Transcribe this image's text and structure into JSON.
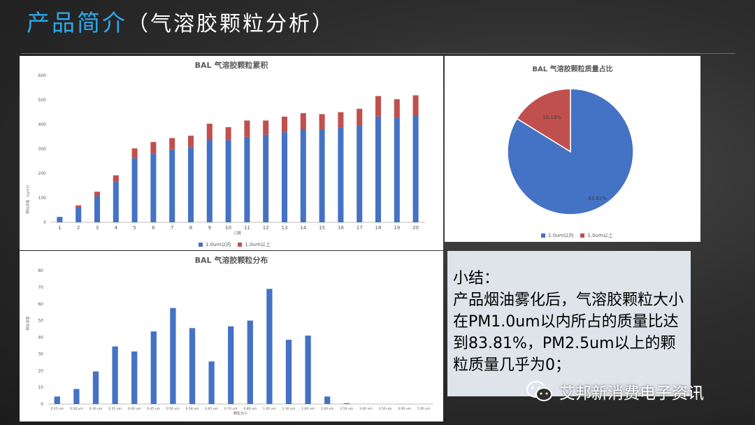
{
  "slide": {
    "title_main": "产品简介",
    "title_sub": "（气溶胶颗粒分析）"
  },
  "chart_data": [
    {
      "type": "bar",
      "stacked": true,
      "title": "BAL 气溶胶颗粒累积",
      "xlabel": "口数",
      "ylabel": "颗粒质量（ug/ml）",
      "ylim": [
        0,
        600
      ],
      "yticks": [
        0,
        100,
        200,
        300,
        400,
        500,
        600
      ],
      "categories": [
        "1",
        "2",
        "3",
        "4",
        "5",
        "6",
        "7",
        "8",
        "9",
        "10",
        "11",
        "12",
        "13",
        "14",
        "15",
        "16",
        "17",
        "18",
        "19",
        "20"
      ],
      "series": [
        {
          "name": "1.0um以内",
          "color": "#4472c4",
          "values": [
            22,
            60,
            107,
            165,
            262,
            282,
            298,
            308,
            340,
            336,
            349,
            358,
            368,
            380,
            380,
            386,
            394,
            432,
            427,
            437
          ]
        },
        {
          "name": "1.0um以上",
          "color": "#c0504d",
          "values": [
            0,
            9,
            18,
            27,
            40,
            46,
            46,
            46,
            63,
            53,
            67,
            58,
            64,
            66,
            62,
            64,
            70,
            84,
            76,
            82
          ]
        }
      ],
      "legend": "bottom",
      "grid": false
    },
    {
      "type": "bar",
      "title": "BAL 气溶胶颗粒分布",
      "xlabel": "颗粒大小",
      "ylabel": "颗粒质量",
      "ylim": [
        0,
        80
      ],
      "yticks": [
        0,
        10,
        20,
        30,
        40,
        50,
        60,
        70,
        80
      ],
      "categories": [
        "0.25 um",
        "0.28 um",
        "0.30 um",
        "0.35 um",
        "0.40 um",
        "0.45 um",
        "0.50 um",
        "0.58 um",
        "0.65 um",
        "0.70 um",
        "0.80 um",
        "1.00 um",
        "1.30 um",
        "1.60 um",
        "2.00 um",
        "2.50 um",
        "3.00 um",
        "3.50 um",
        "4.00 um",
        "5.00 um"
      ],
      "series": [
        {
          "name": "",
          "color": "#4472c4",
          "values": [
            4.5,
            9,
            19.5,
            34.5,
            31.5,
            43.5,
            57.5,
            45.5,
            25.5,
            46.5,
            50,
            69,
            38.5,
            41,
            4.5,
            0.5,
            0,
            0,
            0,
            0
          ]
        }
      ],
      "grid": false
    },
    {
      "type": "pie",
      "title": "BAL 气溶胶颗粒质量占比",
      "slices": [
        {
          "name": "1.0um以内",
          "value": 83.81,
          "label": "83.81%",
          "color": "#4472c4"
        },
        {
          "name": "1.0um以上",
          "value": 16.19,
          "label": "16.19%",
          "color": "#c0504d"
        }
      ],
      "legend": "bottom"
    }
  ],
  "summary": {
    "text": "小结：\n产品烟油雾化后，气溶胶颗粒大小在PM1.0um以内所占的质量比达到83.81%，PM2.5um以上的颗粒质量几乎为0；"
  },
  "watermark": {
    "text": "艾邦新消费电子资讯",
    "icon": "wechat-icon"
  }
}
